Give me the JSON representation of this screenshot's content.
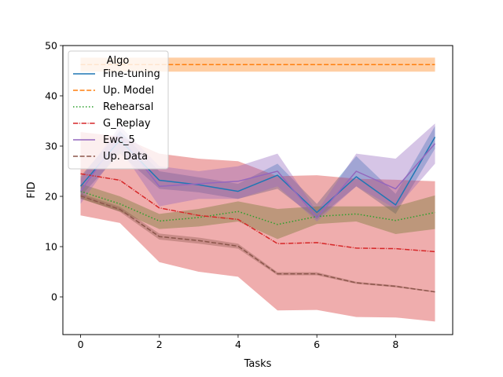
{
  "chart_data": {
    "type": "line",
    "title": "",
    "xlabel": "Tasks",
    "ylabel": "FID",
    "xlim": [
      -0.45,
      9.45
    ],
    "ylim": [
      -7.5,
      50
    ],
    "xticks": [
      0,
      2,
      4,
      6,
      8
    ],
    "yticks": [
      0,
      10,
      20,
      30,
      40,
      50
    ],
    "legend": {
      "title": "Algo",
      "placement": "top-left"
    },
    "x": [
      0,
      1,
      2,
      3,
      4,
      5,
      6,
      7,
      8,
      9
    ],
    "series": [
      {
        "name": "Fine-tuning",
        "color": "#1f77b4",
        "style": "solid",
        "values": [
          22.0,
          31.2,
          23.2,
          22.3,
          21.0,
          24.2,
          16.8,
          23.9,
          18.3,
          31.8
        ],
        "band_low": [
          20.0,
          28.5,
          21.5,
          20.8,
          19.5,
          21.5,
          15.5,
          22.0,
          16.5,
          29.5
        ],
        "band_high": [
          24.0,
          33.0,
          25.0,
          23.8,
          22.5,
          26.5,
          18.5,
          28.0,
          20.5,
          34.0
        ]
      },
      {
        "name": "Up. Model",
        "color": "#ff7f0e",
        "style": "dashed",
        "values": [
          46.2,
          46.2,
          46.2,
          46.2,
          46.2,
          46.2,
          46.2,
          46.2,
          46.2,
          46.2
        ],
        "band_low": [
          44.8,
          44.8,
          44.8,
          44.8,
          44.8,
          44.8,
          44.8,
          44.8,
          44.8,
          44.8
        ],
        "band_high": [
          47.6,
          47.6,
          47.6,
          47.6,
          47.6,
          47.6,
          47.6,
          47.6,
          47.6,
          47.6
        ]
      },
      {
        "name": "Rehearsal",
        "color": "#2ca02c",
        "style": "dotted",
        "values": [
          21.0,
          18.5,
          15.1,
          15.8,
          17.0,
          14.4,
          16.0,
          16.5,
          15.2,
          16.8
        ],
        "band_low": [
          19.5,
          17.0,
          13.5,
          14.0,
          15.0,
          11.5,
          14.5,
          15.0,
          12.5,
          13.5
        ],
        "band_high": [
          22.5,
          20.0,
          16.5,
          17.5,
          19.0,
          17.5,
          18.0,
          18.0,
          18.0,
          20.2
        ]
      },
      {
        "name": "G_Replay",
        "color": "#d62728",
        "style": "dashdot",
        "values": [
          24.5,
          23.2,
          17.7,
          16.2,
          15.4,
          10.6,
          10.8,
          9.7,
          9.6,
          9.0
        ],
        "band_low": [
          16.2,
          14.7,
          6.9,
          5.0,
          4.0,
          -2.7,
          -2.6,
          -4.0,
          -4.1,
          -4.9
        ],
        "band_high": [
          32.8,
          31.9,
          28.5,
          27.5,
          27.0,
          24.0,
          24.2,
          23.5,
          23.3,
          23.0
        ]
      },
      {
        "name": "Ewc_5",
        "color": "#9467bd",
        "style": "solid",
        "values": [
          21.0,
          32.0,
          22.0,
          22.5,
          23.0,
          25.0,
          15.8,
          25.0,
          21.5,
          30.5
        ],
        "band_low": [
          18.5,
          29.5,
          18.0,
          19.5,
          19.5,
          22.0,
          15.0,
          22.0,
          17.5,
          26.5
        ],
        "band_high": [
          23.5,
          34.0,
          26.0,
          25.0,
          26.0,
          28.5,
          17.0,
          28.5,
          27.5,
          34.5
        ]
      },
      {
        "name": "Up. Data",
        "color": "#8c564b",
        "style": "dashed",
        "values": [
          20.1,
          17.4,
          12.0,
          11.2,
          10.1,
          4.6,
          4.6,
          2.8,
          2.1,
          1.0
        ],
        "band_low": [
          19.6,
          16.9,
          11.4,
          10.6,
          9.6,
          4.3,
          4.3,
          2.6,
          1.9,
          0.9
        ],
        "band_high": [
          20.6,
          17.9,
          12.6,
          11.8,
          10.6,
          4.9,
          4.9,
          3.0,
          2.3,
          1.1
        ]
      }
    ]
  }
}
